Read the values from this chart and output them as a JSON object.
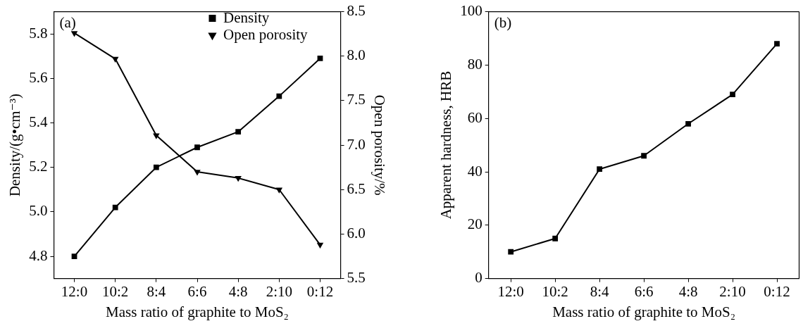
{
  "chart_data": [
    {
      "type": "line",
      "categories": [
        "12:0",
        "10:2",
        "8:4",
        "6:6",
        "4:8",
        "2:10",
        "0:12"
      ],
      "xlabel": "Mass ratio of graphite to MoS₂",
      "ylabel": "Density/(g•cm⁻³)",
      "y2label": "Open porosity/%",
      "ylim": [
        4.7,
        5.9
      ],
      "yticks": [
        {
          "value": 4.8,
          "label": "4.8"
        },
        {
          "value": 5.0,
          "label": "5.0"
        },
        {
          "value": 5.2,
          "label": "5.2"
        },
        {
          "value": 5.4,
          "label": "5.4"
        },
        {
          "value": 5.6,
          "label": "5.6"
        },
        {
          "value": 5.8,
          "label": "5.8"
        }
      ],
      "y2lim": [
        5.5,
        8.5
      ],
      "y2ticks": [
        {
          "value": 5.5,
          "label": "5.5"
        },
        {
          "value": 6.0,
          "label": "6.0"
        },
        {
          "value": 6.5,
          "label": "6.5"
        },
        {
          "value": 7.0,
          "label": "7.0"
        },
        {
          "value": 7.5,
          "label": "7.5"
        },
        {
          "value": 8.0,
          "label": "8.0"
        },
        {
          "value": 8.5,
          "label": "8.5"
        }
      ],
      "grid": false,
      "legend": "top right",
      "line_style": "solid",
      "annotations": [
        "(a)"
      ],
      "series": [
        {
          "name": "Density",
          "color": "#000000",
          "marker": "square",
          "values": [
            4.8,
            5.02,
            5.2,
            5.29,
            5.36,
            5.52,
            5.69
          ]
        },
        {
          "name": "Open porosity",
          "color": "#000000",
          "marker": "triangle",
          "axis": "y2",
          "values": [
            8.26,
            7.97,
            7.11,
            6.7,
            6.63,
            6.5,
            5.88
          ]
        }
      ]
    },
    {
      "type": "line",
      "categories": [
        "12:0",
        "10:2",
        "8:4",
        "6:6",
        "4:8",
        "2:10",
        "0:12"
      ],
      "xlabel": "Mass ratio of graphite to MoS₂",
      "ylabel": "Apparent hardness, HRB",
      "ylim": [
        0,
        100
      ],
      "yticks": [
        0,
        20,
        40,
        60,
        80,
        100
      ],
      "grid": false,
      "legend": false,
      "marker": "square",
      "line_style": "solid",
      "annotations": [
        "(b)"
      ],
      "series": [
        {
          "color": "#000000",
          "values": [
            10,
            15,
            41,
            46,
            58,
            69,
            88
          ]
        }
      ]
    }
  ]
}
